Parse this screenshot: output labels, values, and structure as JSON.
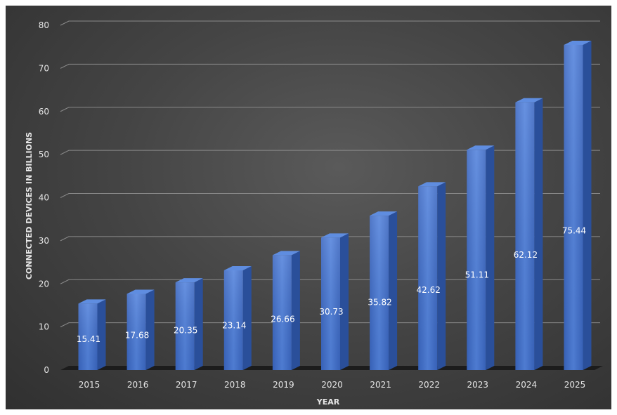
{
  "chart_data": {
    "type": "bar",
    "title": "",
    "xlabel": "YEAR",
    "ylabel": "CONNECTED DEVICES IN BILLIONS",
    "categories": [
      "2015",
      "2016",
      "2017",
      "2018",
      "2019",
      "2020",
      "2021",
      "2022",
      "2023",
      "2024",
      "2025"
    ],
    "values": [
      15.41,
      17.68,
      20.35,
      23.14,
      26.66,
      30.73,
      35.82,
      42.62,
      51.11,
      62.12,
      75.44
    ],
    "ylim": [
      0,
      80
    ],
    "yticks": [
      0,
      10,
      20,
      30,
      40,
      50,
      60,
      70,
      80
    ],
    "grid": true,
    "legend": "none",
    "bar_color": "#4472c4",
    "background_color": "#404040"
  }
}
